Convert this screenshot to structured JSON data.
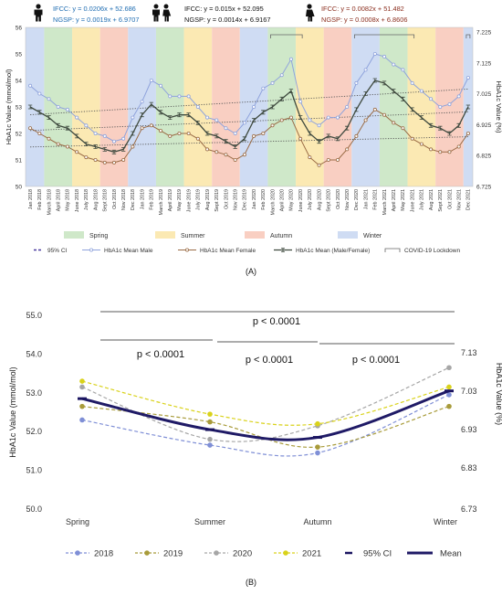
{
  "colors": {
    "spring": "#cfe8c9",
    "summer": "#fbe9b3",
    "autumn": "#f9cfc2",
    "winter": "#cfdcf3",
    "male": "#8fa3dc",
    "female": "#9a6b45",
    "mean": "#3f4a3f",
    "trend": "#555555",
    "y2018": "#7f8fd6",
    "y2019": "#a89b3a",
    "y2020": "#a6a6a6",
    "y2021": "#d9d21a",
    "meanB": "#1f1a66",
    "blueText": "#1f6db2",
    "brownText": "#8b2e1e"
  },
  "icons": {
    "male": "male-person-icon",
    "couple": "couple-icon",
    "female": "female-person-icon"
  },
  "equations": {
    "male_ifcc": "IFCC: y = 0.0206x + 52.686",
    "male_ngsp": "NGSP: y = 0.0019x + 6.9707",
    "all_ifcc": "IFCC: y = 0.015x + 52.095",
    "all_ngsp": "NGSP: y = 0.0014x + 6.9167",
    "female_ifcc": "IFCC: y = 0.0082x + 51.482",
    "female_ngsp": "NGSP: y = 0.0008x + 6.8606"
  },
  "panel_a_label": "(A)",
  "panel_b_label": "(B)",
  "chart_data": [
    {
      "type": "line",
      "panel": "A",
      "ylabel": "HbA1c Value (mmol/mol)",
      "y2label": "HbA1c Value (%)",
      "ylim": [
        50,
        56
      ],
      "yticks": [
        "50",
        "51",
        "52",
        "53",
        "54",
        "55",
        "56"
      ],
      "y2ticks": [
        "6.725",
        "6.825",
        "6.925",
        "7.025",
        "7.125",
        "7.225"
      ],
      "x": [
        "Jan 2018",
        "Feb 2018",
        "March 2018",
        "April 2018",
        "May 2018",
        "June 2018",
        "July 2018",
        "Aug 2018",
        "Sept 2018",
        "Oct 2018",
        "Nov 2018",
        "Dec 2018",
        "Jan 2019",
        "Feb 2019",
        "March 2019",
        "April 2019",
        "May 2019",
        "June 2019",
        "July 2019",
        "Aug 2019",
        "Sept 2019",
        "Oct 2019",
        "Nov 2019",
        "Dec 2019",
        "Jan 2020",
        "Feb 2020",
        "March 2020",
        "April 2020",
        "May 2020",
        "June 2020",
        "July 2020",
        "Aug 2020",
        "Sept 2020",
        "Oct 2020",
        "Nov 2020",
        "Dec 2020",
        "Jan 2021",
        "Feb 2021",
        "March 2021",
        "April 2021",
        "May 2021",
        "June 2021",
        "July 2021",
        "Aug 2021",
        "Sept 2021",
        "Oct 2021",
        "Nov 2021",
        "Dec 2021"
      ],
      "seasons": [
        {
          "name": "Winter",
          "start": 0,
          "end": 1
        },
        {
          "name": "Spring",
          "start": 2,
          "end": 4
        },
        {
          "name": "Summer",
          "start": 5,
          "end": 7
        },
        {
          "name": "Autumn",
          "start": 8,
          "end": 10
        },
        {
          "name": "Winter",
          "start": 11,
          "end": 13
        },
        {
          "name": "Spring",
          "start": 14,
          "end": 16
        },
        {
          "name": "Summer",
          "start": 17,
          "end": 19
        },
        {
          "name": "Autumn",
          "start": 20,
          "end": 22
        },
        {
          "name": "Winter",
          "start": 23,
          "end": 25
        },
        {
          "name": "Spring",
          "start": 26,
          "end": 28
        },
        {
          "name": "Summer",
          "start": 29,
          "end": 31
        },
        {
          "name": "Autumn",
          "start": 32,
          "end": 34
        },
        {
          "name": "Winter",
          "start": 35,
          "end": 37
        },
        {
          "name": "Spring",
          "start": 38,
          "end": 40
        },
        {
          "name": "Summer",
          "start": 41,
          "end": 43
        },
        {
          "name": "Autumn",
          "start": 44,
          "end": 46
        },
        {
          "name": "Winter",
          "start": 47,
          "end": 47
        }
      ],
      "lockdowns": [
        [
          26,
          29
        ],
        [
          35,
          41
        ],
        [
          47,
          47
        ]
      ],
      "series": [
        {
          "name": "HbA1c Mean Male",
          "values": [
            53.8,
            53.5,
            53.3,
            53.0,
            52.9,
            52.6,
            52.3,
            52.0,
            51.9,
            51.7,
            51.8,
            52.6,
            53.2,
            54.0,
            53.8,
            53.4,
            53.4,
            53.4,
            53.0,
            52.6,
            52.5,
            52.2,
            52.0,
            52.4,
            53.0,
            53.7,
            53.9,
            54.2,
            54.8,
            53.2,
            52.5,
            52.3,
            52.6,
            52.6,
            53.0,
            53.9,
            54.4,
            55.0,
            54.9,
            54.6,
            54.4,
            53.9,
            53.6,
            53.3,
            53.0,
            53.1,
            53.4,
            54.1
          ]
        },
        {
          "name": "HbA1c Mean (Male/Female)",
          "values": [
            53.0,
            52.8,
            52.6,
            52.3,
            52.2,
            51.9,
            51.6,
            51.5,
            51.4,
            51.3,
            51.4,
            52.0,
            52.7,
            53.1,
            52.8,
            52.6,
            52.7,
            52.7,
            52.4,
            52.0,
            51.9,
            51.7,
            51.5,
            51.8,
            52.5,
            52.8,
            53.0,
            53.3,
            53.6,
            52.6,
            52.0,
            51.7,
            51.9,
            51.8,
            52.2,
            52.9,
            53.5,
            54.0,
            53.9,
            53.6,
            53.3,
            52.9,
            52.6,
            52.3,
            52.2,
            52.0,
            52.3,
            53.0
          ]
        },
        {
          "name": "HbA1c Mean Female",
          "values": [
            52.2,
            52.0,
            51.8,
            51.6,
            51.5,
            51.3,
            51.1,
            51.0,
            50.9,
            50.9,
            51.0,
            51.5,
            52.2,
            52.3,
            52.1,
            51.9,
            52.0,
            52.0,
            51.8,
            51.4,
            51.3,
            51.2,
            51.0,
            51.2,
            51.9,
            52.0,
            52.3,
            52.5,
            52.6,
            51.8,
            51.1,
            50.8,
            51.0,
            51.0,
            51.4,
            51.9,
            52.5,
            52.9,
            52.7,
            52.4,
            52.2,
            51.8,
            51.6,
            51.4,
            51.3,
            51.3,
            51.5,
            52.0
          ]
        }
      ],
      "legend": {
        "seasons": [
          "Spring",
          "Summer",
          "Autumn",
          "Winter"
        ],
        "ci": "95% CI",
        "male": "HbA1c Mean Male",
        "female": "HbA1c Mean Female",
        "mean": "HbA1c Mean (Male/Female)",
        "lockdown": "COVID-19 Lockdown"
      }
    },
    {
      "type": "line",
      "panel": "B",
      "ylabel": "HbA1c Value (mmol/mol)",
      "y2label": "HbA1c Value (%)",
      "ylim": [
        50,
        55
      ],
      "yticks": [
        "50.0",
        "51.0",
        "52.0",
        "53.0",
        "54.0",
        "55.0"
      ],
      "y2ticks": [
        "6.73",
        "6.83",
        "6.93",
        "7.03",
        "7.13"
      ],
      "categories": [
        "Spring",
        "Summer",
        "Autumn",
        "Winter"
      ],
      "series": [
        {
          "name": "2018",
          "values": [
            52.3,
            51.65,
            51.45,
            52.95
          ]
        },
        {
          "name": "2019",
          "values": [
            52.65,
            52.25,
            51.6,
            52.65
          ]
        },
        {
          "name": "2020",
          "values": [
            53.15,
            51.8,
            52.15,
            53.65
          ]
        },
        {
          "name": "2021",
          "values": [
            53.3,
            52.45,
            52.2,
            53.15
          ]
        },
        {
          "name": "Mean",
          "values": [
            52.85,
            52.05,
            51.85,
            53.05
          ]
        }
      ],
      "annotations": [
        "p < 0.0001",
        "p < 0.0001",
        "p < 0.0001",
        "p < 0.0001"
      ],
      "legend": [
        "2018",
        "2019",
        "2020",
        "2021",
        "95% CI",
        "Mean"
      ]
    }
  ]
}
